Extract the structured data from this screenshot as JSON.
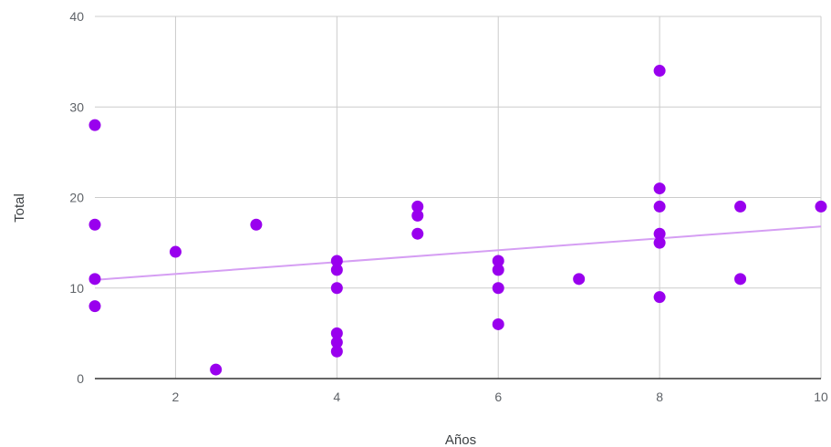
{
  "chart_data": {
    "type": "scatter",
    "title": "",
    "xlabel": "Años",
    "ylabel": "Total",
    "xlim": [
      1,
      10
    ],
    "ylim": [
      0,
      40
    ],
    "xticks": [
      2,
      4,
      6,
      8,
      10
    ],
    "xtick_labels": [
      "2",
      "4",
      "6",
      "8",
      "10"
    ],
    "yticks": [
      0,
      10,
      20,
      30,
      40
    ],
    "ytick_labels": [
      "0",
      "10",
      "20",
      "30",
      "40"
    ],
    "grid": true,
    "legend": "none",
    "point_color": "#9900ee",
    "trendline_color": "#d59ef3",
    "points": [
      {
        "x": 1,
        "y": 28
      },
      {
        "x": 1,
        "y": 17
      },
      {
        "x": 1,
        "y": 11
      },
      {
        "x": 1,
        "y": 8
      },
      {
        "x": 2,
        "y": 14
      },
      {
        "x": 2.5,
        "y": 1
      },
      {
        "x": 3,
        "y": 17
      },
      {
        "x": 4,
        "y": 13
      },
      {
        "x": 4,
        "y": 12
      },
      {
        "x": 4,
        "y": 10
      },
      {
        "x": 4,
        "y": 5
      },
      {
        "x": 4,
        "y": 4
      },
      {
        "x": 4,
        "y": 3
      },
      {
        "x": 5,
        "y": 19
      },
      {
        "x": 5,
        "y": 18
      },
      {
        "x": 5,
        "y": 16
      },
      {
        "x": 6,
        "y": 13
      },
      {
        "x": 6,
        "y": 12
      },
      {
        "x": 6,
        "y": 10
      },
      {
        "x": 6,
        "y": 6
      },
      {
        "x": 7,
        "y": 11
      },
      {
        "x": 8,
        "y": 34
      },
      {
        "x": 8,
        "y": 21
      },
      {
        "x": 8,
        "y": 19
      },
      {
        "x": 8,
        "y": 16
      },
      {
        "x": 8,
        "y": 15
      },
      {
        "x": 8,
        "y": 9
      },
      {
        "x": 9,
        "y": 19
      },
      {
        "x": 9,
        "y": 11
      },
      {
        "x": 10,
        "y": 19
      }
    ],
    "trendline": {
      "x": [
        1,
        10
      ],
      "y": [
        10.9,
        16.8
      ]
    }
  }
}
